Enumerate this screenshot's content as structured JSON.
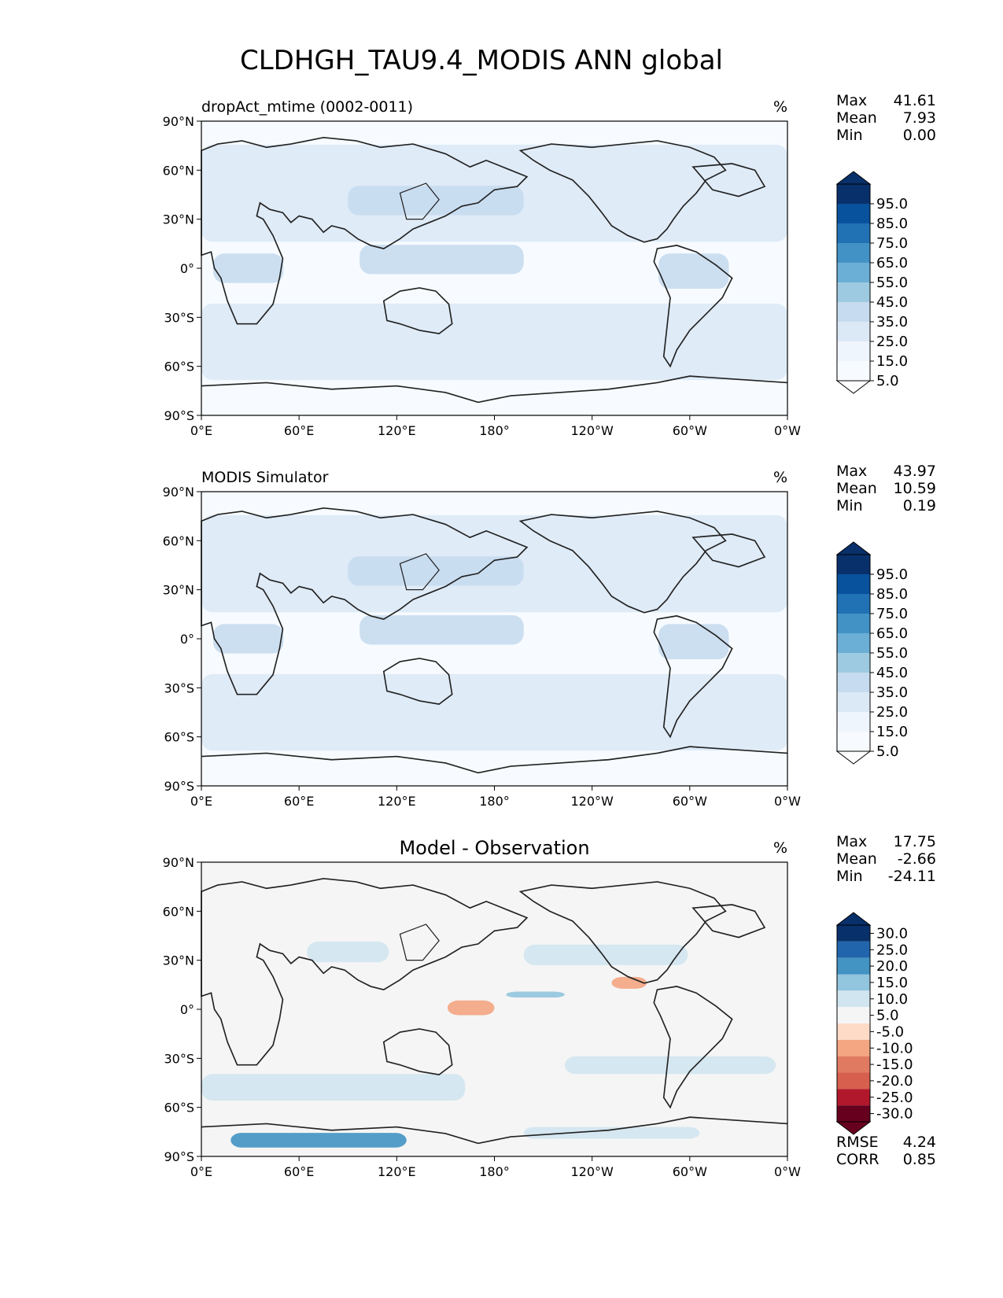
{
  "figure": {
    "title": "CLDHGH_TAU9.4_MODIS ANN global"
  },
  "axes": {
    "lat_ticks": [
      "90°N",
      "60°N",
      "30°N",
      "0°",
      "30°S",
      "60°S",
      "90°S"
    ],
    "lon_ticks": [
      "0°E",
      "60°E",
      "120°E",
      "180°",
      "120°W",
      "60°W",
      "0°W"
    ]
  },
  "panels": [
    {
      "id": "test",
      "left_title": "dropAct_mtime (0002-0011)",
      "center_title": "",
      "units": "%",
      "stats": [
        {
          "label": "Max",
          "value": "41.61"
        },
        {
          "label": "Mean",
          "value": "7.93"
        },
        {
          "label": "Min",
          "value": "0.00"
        }
      ],
      "colorbar": {
        "extend": "both",
        "levels": [
          "95.0",
          "85.0",
          "75.0",
          "65.0",
          "55.0",
          "45.0",
          "35.0",
          "25.0",
          "15.0",
          "5.0"
        ],
        "colors_top_to_bottom": [
          "#08306b",
          "#08519c",
          "#2171b5",
          "#4292c6",
          "#6baed6",
          "#9ecae1",
          "#c6dbef",
          "#dbe9f6",
          "#eff5fc",
          "#f7fbff"
        ]
      },
      "footer_stats": []
    },
    {
      "id": "ref",
      "left_title": "MODIS Simulator",
      "center_title": "",
      "units": "%",
      "stats": [
        {
          "label": "Max",
          "value": "43.97"
        },
        {
          "label": "Mean",
          "value": "10.59"
        },
        {
          "label": "Min",
          "value": "0.19"
        }
      ],
      "colorbar": {
        "extend": "both",
        "levels": [
          "95.0",
          "85.0",
          "75.0",
          "65.0",
          "55.0",
          "45.0",
          "35.0",
          "25.0",
          "15.0",
          "5.0"
        ],
        "colors_top_to_bottom": [
          "#08306b",
          "#08519c",
          "#2171b5",
          "#4292c6",
          "#6baed6",
          "#9ecae1",
          "#c6dbef",
          "#dbe9f6",
          "#eff5fc",
          "#f7fbff"
        ]
      },
      "footer_stats": []
    },
    {
      "id": "diff",
      "left_title": "",
      "center_title": "Model - Observation",
      "units": "%",
      "stats": [
        {
          "label": "Max",
          "value": "17.75"
        },
        {
          "label": "Mean",
          "value": "-2.66"
        },
        {
          "label": "Min",
          "value": "-24.11"
        }
      ],
      "colorbar": {
        "extend": "both",
        "levels": [
          "30.0",
          "25.0",
          "20.0",
          "15.0",
          "10.0",
          "5.0",
          "-5.0",
          "-10.0",
          "-15.0",
          "-20.0",
          "-25.0",
          "-30.0"
        ],
        "colors_top_to_bottom": [
          "#08306b",
          "#2166ac",
          "#4393c3",
          "#92c5de",
          "#d1e5f0",
          "#f5f5f5",
          "#fddbc7",
          "#f4a582",
          "#e07b62",
          "#d6604d",
          "#b2182b",
          "#67001f"
        ]
      },
      "footer_stats": [
        {
          "label": "RMSE",
          "value": "4.24"
        },
        {
          "label": "CORR",
          "value": "0.85"
        }
      ]
    }
  ]
}
